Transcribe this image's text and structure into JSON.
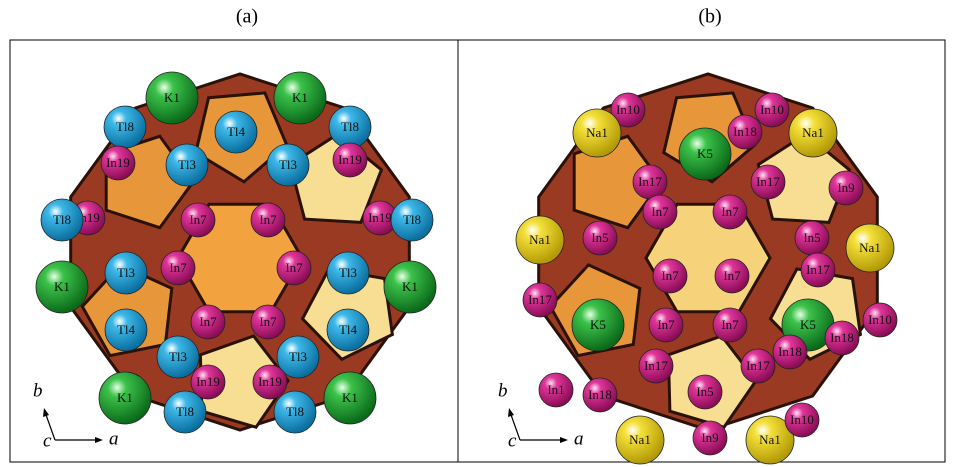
{
  "panels": [
    {
      "label": "(a)",
      "atoms": [
        "K1",
        "K1",
        "Tl8",
        "Tl8",
        "Tl4",
        "In19",
        "Tl3",
        "Tl3",
        "In19",
        "In19",
        "Tl8",
        "In7",
        "In7",
        "In19",
        "Tl8",
        "K1",
        "Tl3",
        "In7",
        "In7",
        "Tl3",
        "K1",
        "Tl4",
        "In7",
        "In7",
        "Tl4",
        "Tl3",
        "Tl3",
        "K1",
        "In19",
        "In19",
        "K1",
        "Tl8",
        "Tl8"
      ],
      "axes": {
        "a": "a",
        "b": "b",
        "c": "c"
      }
    },
    {
      "label": "(b)",
      "atoms": [
        "In10",
        "In10",
        "Na1",
        "In18",
        "K5",
        "Na1",
        "In17",
        "In17",
        "In5",
        "In7",
        "In7",
        "In5",
        "In9",
        "Na1",
        "Na1",
        "In17",
        "In7",
        "In7",
        "In17",
        "In10",
        "K5",
        "In7",
        "In7",
        "K5",
        "In18",
        "In18",
        "In17",
        "In17",
        "In5",
        "In18",
        "Na1",
        "In9",
        "Na1",
        "In10",
        "In1"
      ],
      "axes": {
        "a": "a",
        "b": "b",
        "c": "c"
      }
    }
  ]
}
